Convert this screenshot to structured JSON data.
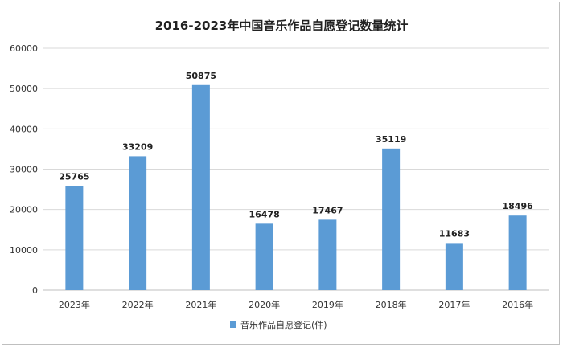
{
  "chart_data": {
    "type": "bar",
    "title": "2016-2023年中国音乐作品自愿登记数量统计",
    "categories": [
      "2023年",
      "2022年",
      "2021年",
      "2020年",
      "2019年",
      "2018年",
      "2017年",
      "2016年"
    ],
    "series": [
      {
        "name": "音乐作品自愿登记(件)",
        "values": [
          25765,
          33209,
          50875,
          16478,
          17467,
          35119,
          11683,
          18496
        ],
        "color": "#5b9bd5"
      }
    ],
    "data_labels": [
      "25765",
      "33209",
      "50875",
      "16478",
      "17467",
      "35119",
      "11683",
      "18496"
    ],
    "ylim": [
      0,
      60000
    ],
    "yticks": [
      "0",
      "10000",
      "20000",
      "30000",
      "40000",
      "50000",
      "60000"
    ],
    "ytick_values": [
      0,
      10000,
      20000,
      30000,
      40000,
      50000,
      60000
    ],
    "grid": "horizontal",
    "legend_position": "bottom",
    "xlabel": "",
    "ylabel": ""
  }
}
